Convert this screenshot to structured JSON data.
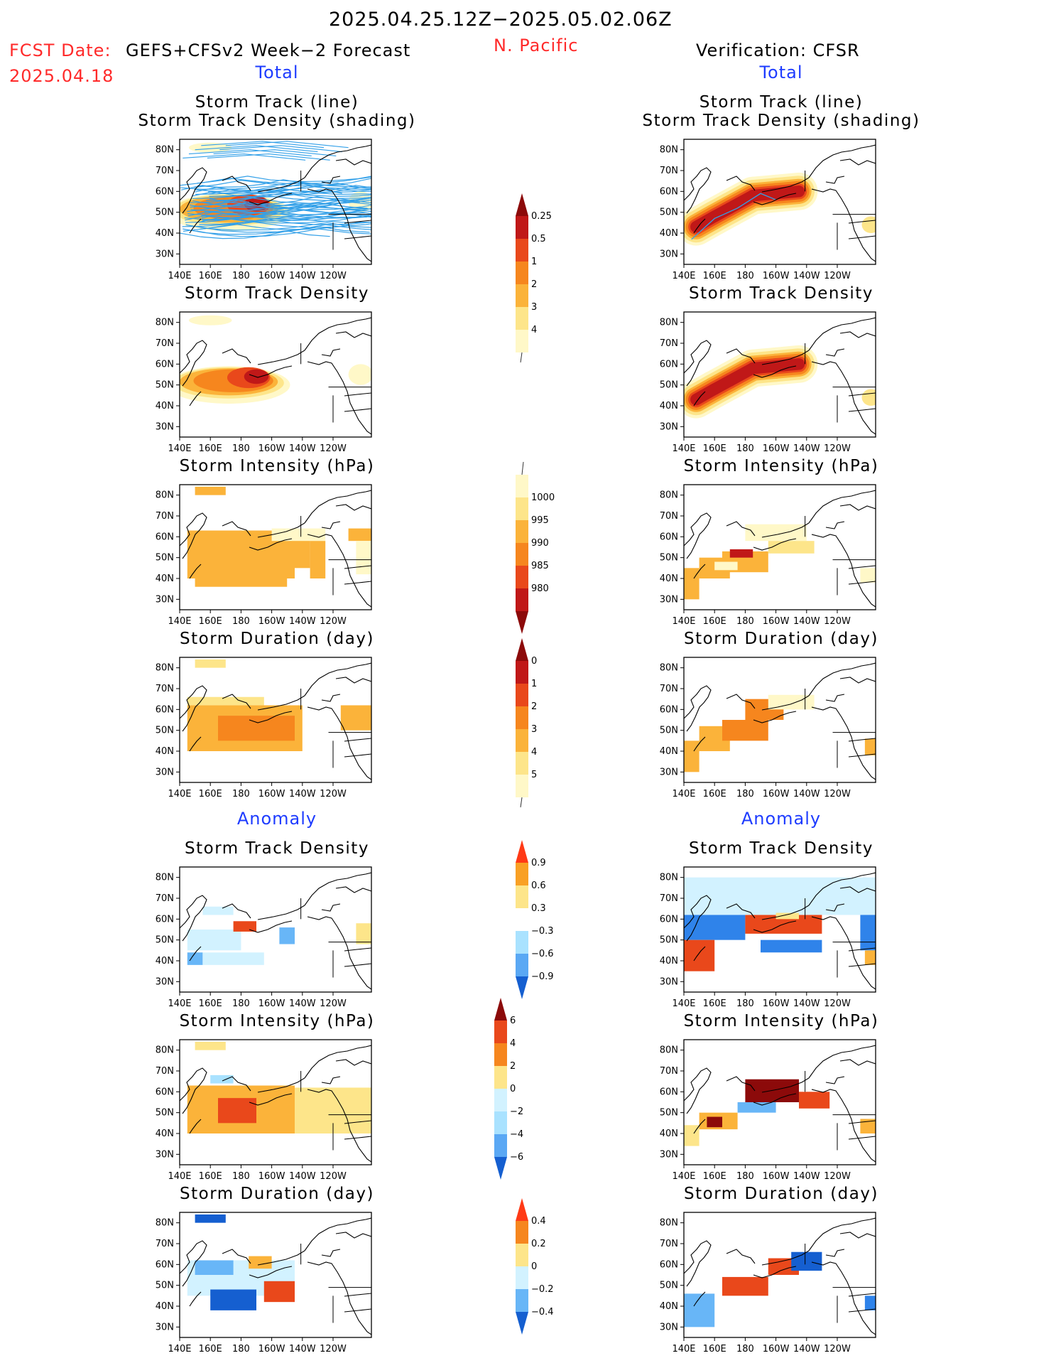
{
  "header": {
    "period": "2025.04.25.12Z−2025.05.02.06Z",
    "fcst_label": "FCST Date:",
    "fcst_model": "GEFS+CFSv2 Week−2 Forecast",
    "fcst_date": "2025.04.18",
    "region": "N. Pacific",
    "verification": "Verification: CFSR"
  },
  "sections": {
    "total": "Total",
    "anomaly": "Anomaly"
  },
  "titles": {
    "track_line": "Storm Track (line)",
    "track_shading": "Storm Track Density (shading)",
    "density": "Storm Track Density",
    "intensity": "Storm Intensity (hPa)",
    "duration": "Storm Duration (day)"
  },
  "axes": {
    "lat_ticks": [
      "80N",
      "70N",
      "60N",
      "50N",
      "40N",
      "30N"
    ],
    "lon_ticks": [
      "140E",
      "160E",
      "180",
      "160W",
      "140W",
      "120W"
    ]
  },
  "colors": {
    "warm": [
      "#fff8c8",
      "#fde58a",
      "#fbb33a",
      "#f6861e",
      "#e9481b",
      "#c01818",
      "#8c0a0a"
    ],
    "cool": [
      "#d2f2ff",
      "#a9e2ff",
      "#68b6f7",
      "#2f83ea",
      "#155fd0"
    ],
    "track_line": "#33a0e8"
  },
  "chart_data": [
    {
      "type": "colorbar",
      "name": "Storm Track Density (Total)",
      "levels": [
        "0.25",
        "0.5",
        "1",
        "2",
        "3",
        "4"
      ],
      "colors": [
        "#fff8c8",
        "#fde58a",
        "#fbb33a",
        "#f6861e",
        "#e9481b",
        "#c01818",
        "#8c0a0a"
      ]
    },
    {
      "type": "colorbar",
      "name": "Storm Intensity (Total, hPa)",
      "levels": [
        "1000",
        "995",
        "990",
        "985",
        "980"
      ],
      "colors": [
        "#fff8c8",
        "#fde58a",
        "#fbb33a",
        "#f6861e",
        "#e9481b",
        "#c01818",
        "#8c0a0a"
      ]
    },
    {
      "type": "colorbar",
      "name": "Storm Duration (Total, day)",
      "levels": [
        "0",
        "1",
        "2",
        "3",
        "4",
        "5"
      ],
      "colors": [
        "#fff8c8",
        "#fde58a",
        "#fbb33a",
        "#f6861e",
        "#e9481b",
        "#c01818",
        "#8c0a0a"
      ]
    },
    {
      "type": "colorbar",
      "name": "Storm Track Density (Anomaly)",
      "levels": [
        "0.9",
        "0.6",
        "0.3",
        "−0.3",
        "−0.6",
        "−0.9"
      ],
      "colors": [
        "#ff3a16",
        "#f9a024",
        "#fde58a",
        "#ffffff",
        "#a9e2ff",
        "#5aa8f4",
        "#155fd0"
      ]
    },
    {
      "type": "colorbar",
      "name": "Storm Intensity (Anomaly, hPa)",
      "levels": [
        "6",
        "4",
        "2",
        "0",
        "−2",
        "−4",
        "−6"
      ],
      "colors": [
        "#8c0a0a",
        "#e9481b",
        "#f6861e",
        "#fde58a",
        "#d2f2ff",
        "#a9e2ff",
        "#5aa8f4",
        "#155fd0"
      ]
    },
    {
      "type": "colorbar",
      "name": "Storm Duration (Anomaly, day)",
      "levels": [
        "0.4",
        "0.2",
        "0",
        "−0.2",
        "−0.4"
      ],
      "colors": [
        "#ff3a16",
        "#f6861e",
        "#fde58a",
        "#d2f2ff",
        "#68b6f7",
        "#155fd0"
      ]
    }
  ]
}
